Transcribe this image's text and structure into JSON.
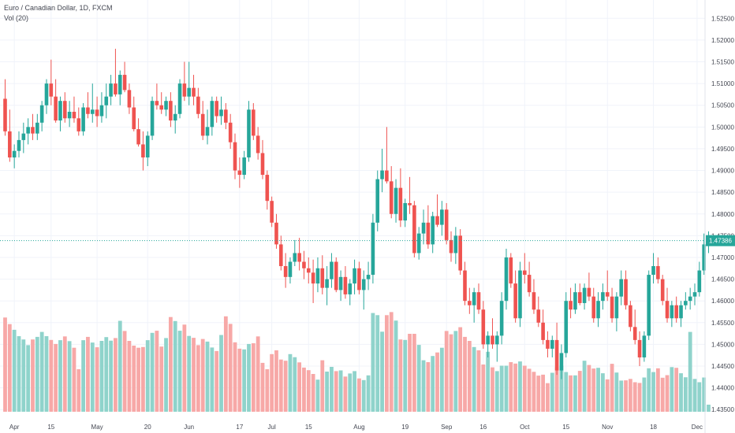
{
  "header": {
    "symbol": "Euro / Canadian Dollar, 1D, FXCM",
    "volume": "Vol (20)"
  },
  "colors": {
    "up": "#26a69a",
    "down": "#ef5350",
    "vol_up": "#8fd3cb",
    "vol_down": "#f7a8a7",
    "price_line": "#26a69a",
    "grid": "#f0f3fa",
    "axis_text": "#434651"
  },
  "chart_data": {
    "type": "candlestick",
    "title": "Euro / Canadian Dollar, 1D, FXCM",
    "indicator": "Vol (20)",
    "ylim": [
      1.4345,
      1.5265
    ],
    "y_ticks": [
      "1.52500",
      "1.52000",
      "1.51500",
      "1.51000",
      "1.50500",
      "1.50000",
      "1.49500",
      "1.49000",
      "1.48500",
      "1.48000",
      "1.47500",
      "1.47000",
      "1.46500",
      "1.46000",
      "1.45500",
      "1.45000",
      "1.44500",
      "1.44000",
      "1.43500"
    ],
    "x_ticks": [
      "Apr",
      "15",
      "May",
      "20",
      "Jun",
      "17",
      "Jul",
      "15",
      "Aug",
      "19",
      "Sep",
      "16",
      "Oct",
      "15",
      "Nov",
      "18",
      "Dec"
    ],
    "last_price": "1.47386",
    "ohlc": [
      [
        1.5065,
        1.511,
        1.498,
        1.499
      ],
      [
        1.499,
        1.504,
        1.492,
        1.493
      ],
      [
        1.493,
        1.496,
        1.4905,
        1.4945
      ],
      [
        1.4945,
        1.499,
        1.493,
        1.497
      ],
      [
        1.497,
        1.501,
        1.494,
        1.4985
      ],
      [
        1.4985,
        1.502,
        1.496,
        1.5
      ],
      [
        1.5,
        1.503,
        1.497,
        1.4985
      ],
      [
        1.4985,
        1.503,
        1.497,
        1.501
      ],
      [
        1.501,
        1.506,
        1.499,
        1.505
      ],
      [
        1.505,
        1.511,
        1.503,
        1.51
      ],
      [
        1.51,
        1.5155,
        1.505,
        1.507
      ],
      [
        1.507,
        1.511,
        1.501,
        1.5015
      ],
      [
        1.5015,
        1.507,
        1.499,
        1.506
      ],
      [
        1.506,
        1.508,
        1.501,
        1.502
      ],
      [
        1.502,
        1.506,
        1.5,
        1.5035
      ],
      [
        1.5035,
        1.507,
        1.501,
        1.502
      ],
      [
        1.502,
        1.5045,
        1.498,
        1.499
      ],
      [
        1.499,
        1.5055,
        1.498,
        1.5045
      ],
      [
        1.5045,
        1.508,
        1.502,
        1.503
      ],
      [
        1.503,
        1.51,
        1.501,
        1.504
      ],
      [
        1.504,
        1.507,
        1.5,
        1.5025
      ],
      [
        1.5025,
        1.508,
        1.501,
        1.505
      ],
      [
        1.505,
        1.51,
        1.502,
        1.507
      ],
      [
        1.507,
        1.512,
        1.505,
        1.51
      ],
      [
        1.51,
        1.518,
        1.507,
        1.5075
      ],
      [
        1.5075,
        1.513,
        1.505,
        1.512
      ],
      [
        1.512,
        1.515,
        1.508,
        1.5085
      ],
      [
        1.5085,
        1.51,
        1.503,
        1.5045
      ],
      [
        1.5045,
        1.507,
        1.499,
        1.4995
      ],
      [
        1.4995,
        1.502,
        1.4955,
        1.496
      ],
      [
        1.496,
        1.499,
        1.49,
        1.493
      ],
      [
        1.493,
        1.499,
        1.491,
        1.498
      ],
      [
        1.498,
        1.507,
        1.497,
        1.506
      ],
      [
        1.506,
        1.51,
        1.504,
        1.505
      ],
      [
        1.505,
        1.508,
        1.503,
        1.504
      ],
      [
        1.504,
        1.507,
        1.5025,
        1.506
      ],
      [
        1.506,
        1.508,
        1.5,
        1.5015
      ],
      [
        1.5015,
        1.505,
        1.4985,
        1.503
      ],
      [
        1.503,
        1.511,
        1.502,
        1.51
      ],
      [
        1.51,
        1.515,
        1.506,
        1.507
      ],
      [
        1.507,
        1.515,
        1.505,
        1.509
      ],
      [
        1.509,
        1.512,
        1.505,
        1.507
      ],
      [
        1.507,
        1.509,
        1.502,
        1.503
      ],
      [
        1.503,
        1.506,
        1.497,
        1.498
      ],
      [
        1.498,
        1.504,
        1.496,
        1.5
      ],
      [
        1.5,
        1.507,
        1.498,
        1.506
      ],
      [
        1.506,
        1.507,
        1.501,
        1.5025
      ],
      [
        1.5025,
        1.507,
        1.5005,
        1.504
      ],
      [
        1.504,
        1.5055,
        1.4995,
        1.501
      ],
      [
        1.501,
        1.503,
        1.495,
        1.4965
      ],
      [
        1.4965,
        1.4985,
        1.488,
        1.49
      ],
      [
        1.49,
        1.493,
        1.486,
        1.489
      ],
      [
        1.489,
        1.4945,
        1.488,
        1.493
      ],
      [
        1.493,
        1.506,
        1.492,
        1.504
      ],
      [
        1.504,
        1.5055,
        1.497,
        1.498
      ],
      [
        1.498,
        1.5,
        1.4925,
        1.494
      ],
      [
        1.494,
        1.497,
        1.488,
        1.489
      ],
      [
        1.489,
        1.49,
        1.481,
        1.483
      ],
      [
        1.483,
        1.484,
        1.477,
        1.478
      ],
      [
        1.478,
        1.48,
        1.472,
        1.473
      ],
      [
        1.473,
        1.475,
        1.467,
        1.468
      ],
      [
        1.468,
        1.471,
        1.463,
        1.4655
      ],
      [
        1.4655,
        1.47,
        1.464,
        1.469
      ],
      [
        1.469,
        1.474,
        1.468,
        1.471
      ],
      [
        1.471,
        1.4745,
        1.467,
        1.469
      ],
      [
        1.469,
        1.4715,
        1.465,
        1.4675
      ],
      [
        1.4675,
        1.47,
        1.464,
        1.4665
      ],
      [
        1.4665,
        1.4695,
        1.4595,
        1.464
      ],
      [
        1.464,
        1.47,
        1.462,
        1.4675
      ],
      [
        1.4675,
        1.4705,
        1.4615,
        1.463
      ],
      [
        1.463,
        1.468,
        1.459,
        1.465
      ],
      [
        1.465,
        1.471,
        1.463,
        1.469
      ],
      [
        1.469,
        1.47,
        1.462,
        1.4625
      ],
      [
        1.4625,
        1.467,
        1.46,
        1.4655
      ],
      [
        1.4655,
        1.468,
        1.4605,
        1.4615
      ],
      [
        1.4615,
        1.465,
        1.459,
        1.464
      ],
      [
        1.464,
        1.4695,
        1.4615,
        1.4675
      ],
      [
        1.4675,
        1.469,
        1.4615,
        1.4625
      ],
      [
        1.4625,
        1.467,
        1.458,
        1.465
      ],
      [
        1.465,
        1.469,
        1.4625,
        1.466
      ],
      [
        1.466,
        1.48,
        1.464,
        1.478
      ],
      [
        1.478,
        1.49,
        1.476,
        1.488
      ],
      [
        1.488,
        1.495,
        1.485,
        1.49
      ],
      [
        1.49,
        1.5,
        1.487,
        1.4875
      ],
      [
        1.4875,
        1.491,
        1.479,
        1.48
      ],
      [
        1.48,
        1.488,
        1.478,
        1.486
      ],
      [
        1.486,
        1.4905,
        1.477,
        1.4785
      ],
      [
        1.4785,
        1.4835,
        1.477,
        1.4825
      ],
      [
        1.4825,
        1.4885,
        1.48,
        1.482
      ],
      [
        1.482,
        1.483,
        1.47,
        1.471
      ],
      [
        1.471,
        1.477,
        1.4695,
        1.4755
      ],
      [
        1.4755,
        1.481,
        1.473,
        1.478
      ],
      [
        1.478,
        1.482,
        1.472,
        1.473
      ],
      [
        1.473,
        1.4805,
        1.471,
        1.4795
      ],
      [
        1.4795,
        1.4845,
        1.477,
        1.4775
      ],
      [
        1.4775,
        1.483,
        1.475,
        1.481
      ],
      [
        1.481,
        1.4825,
        1.473,
        1.474
      ],
      [
        1.474,
        1.476,
        1.469,
        1.471
      ],
      [
        1.471,
        1.477,
        1.4685,
        1.475
      ],
      [
        1.475,
        1.4765,
        1.466,
        1.467
      ],
      [
        1.467,
        1.469,
        1.459,
        1.46
      ],
      [
        1.46,
        1.463,
        1.457,
        1.459
      ],
      [
        1.459,
        1.463,
        1.455,
        1.462
      ],
      [
        1.462,
        1.464,
        1.457,
        1.458
      ],
      [
        1.458,
        1.46,
        1.449,
        1.45
      ],
      [
        1.45,
        1.453,
        1.447,
        1.452
      ],
      [
        1.452,
        1.456,
        1.449,
        1.45
      ],
      [
        1.45,
        1.453,
        1.446,
        1.452
      ],
      [
        1.452,
        1.462,
        1.45,
        1.46
      ],
      [
        1.46,
        1.472,
        1.458,
        1.47
      ],
      [
        1.47,
        1.471,
        1.463,
        1.464
      ],
      [
        1.464,
        1.467,
        1.455,
        1.456
      ],
      [
        1.456,
        1.469,
        1.454,
        1.467
      ],
      [
        1.467,
        1.471,
        1.464,
        1.466
      ],
      [
        1.466,
        1.469,
        1.461,
        1.462
      ],
      [
        1.462,
        1.465,
        1.457,
        1.458
      ],
      [
        1.458,
        1.461,
        1.454,
        1.455
      ],
      [
        1.455,
        1.458,
        1.45,
        1.451
      ],
      [
        1.451,
        1.453,
        1.447,
        1.449
      ],
      [
        1.449,
        1.452,
        1.447,
        1.451
      ],
      [
        1.451,
        1.455,
        1.443,
        1.444
      ],
      [
        1.444,
        1.45,
        1.442,
        1.448
      ],
      [
        1.448,
        1.462,
        1.447,
        1.46
      ],
      [
        1.46,
        1.463,
        1.456,
        1.458
      ],
      [
        1.458,
        1.464,
        1.457,
        1.462
      ],
      [
        1.462,
        1.464,
        1.459,
        1.4595
      ],
      [
        1.4595,
        1.464,
        1.458,
        1.463
      ],
      [
        1.463,
        1.4665,
        1.46,
        1.461
      ],
      [
        1.461,
        1.463,
        1.455,
        1.456
      ],
      [
        1.456,
        1.462,
        1.454,
        1.46
      ],
      [
        1.46,
        1.464,
        1.458,
        1.462
      ],
      [
        1.462,
        1.467,
        1.46,
        1.461
      ],
      [
        1.461,
        1.463,
        1.455,
        1.456
      ],
      [
        1.456,
        1.462,
        1.453,
        1.461
      ],
      [
        1.461,
        1.467,
        1.459,
        1.465
      ],
      [
        1.465,
        1.467,
        1.458,
        1.459
      ],
      [
        1.459,
        1.46,
        1.453,
        1.454
      ],
      [
        1.454,
        1.458,
        1.45,
        1.451
      ],
      [
        1.451,
        1.453,
        1.445,
        1.447
      ],
      [
        1.447,
        1.453,
        1.446,
        1.452
      ],
      [
        1.452,
        1.467,
        1.451,
        1.466
      ],
      [
        1.466,
        1.471,
        1.464,
        1.468
      ],
      [
        1.468,
        1.47,
        1.464,
        1.465
      ],
      [
        1.465,
        1.466,
        1.459,
        1.46
      ],
      [
        1.46,
        1.463,
        1.455,
        1.456
      ],
      [
        1.456,
        1.46,
        1.454,
        1.459
      ],
      [
        1.459,
        1.461,
        1.455,
        1.456
      ],
      [
        1.456,
        1.46,
        1.454,
        1.459
      ],
      [
        1.459,
        1.462,
        1.458,
        1.46
      ],
      [
        1.46,
        1.463,
        1.458,
        1.461
      ],
      [
        1.461,
        1.464,
        1.459,
        1.462
      ],
      [
        1.462,
        1.469,
        1.461,
        1.467
      ],
      [
        1.467,
        1.4755,
        1.466,
        1.473
      ],
      [
        1.473,
        1.476,
        1.471,
        1.47386
      ]
    ],
    "volume": [
      39.9,
      37.1,
      34.7,
      32.0,
      30.6,
      28.2,
      30.6,
      31.7,
      33.8,
      32.0,
      30.4,
      28.7,
      30.3,
      31.9,
      29.9,
      27.1,
      18.0,
      30.3,
      31.7,
      29.3,
      27.3,
      30.0,
      31.6,
      30.1,
      31.2,
      38.5,
      34.2,
      30.0,
      28.0,
      27.1,
      27.4,
      30.3,
      33.4,
      34.3,
      27.6,
      31.2,
      40.1,
      38.4,
      34.3,
      36.9,
      32.1,
      31.3,
      28.2,
      30.8,
      29.7,
      27.2,
      25.7,
      32.5,
      40.4,
      37.2,
      29.4,
      26.7,
      26.4,
      28.7,
      29.0,
      31.9,
      20.7,
      18.0,
      24.4,
      26.0,
      22.1,
      21.6,
      24.4,
      23.1,
      20.9,
      18.7,
      17.6,
      16.0,
      13.6,
      21.8,
      17.0,
      19.0,
      17.2,
      17.5,
      14.9,
      16.2,
      17.2,
      14.1,
      13.4,
      15.4,
      41.8,
      40.9,
      33.9,
      40.9,
      42.2,
      38.6,
      30.6,
      30.4,
      33.0,
      33.0,
      28.3,
      21.8,
      21.0,
      23.6,
      25.1,
      27.1,
      34.2,
      32.8,
      34.2,
      35.8,
      31.7,
      30.0,
      27.4,
      26.0,
      20.0,
      25.4,
      18.8,
      17.2,
      19.5,
      19.5,
      21.0,
      20.4,
      21.3,
      19.5,
      18.2,
      16.9,
      15.3,
      15.7,
      12.1,
      16.5,
      18.9,
      19.5,
      16.8,
      15.4,
      15.4,
      17.3,
      21.6,
      19.8,
      18.3,
      18.6,
      16.3,
      13.7,
      20.3,
      16.6,
      13.2,
      13.3,
      13.9,
      12.5,
      12.2,
      14.5,
      18.4,
      16.8,
      18.4,
      14.4,
      15.5,
      18.9,
      18.6,
      16.3,
      14.6,
      33.8,
      13.9,
      12.5,
      14.5,
      3.0
    ]
  }
}
